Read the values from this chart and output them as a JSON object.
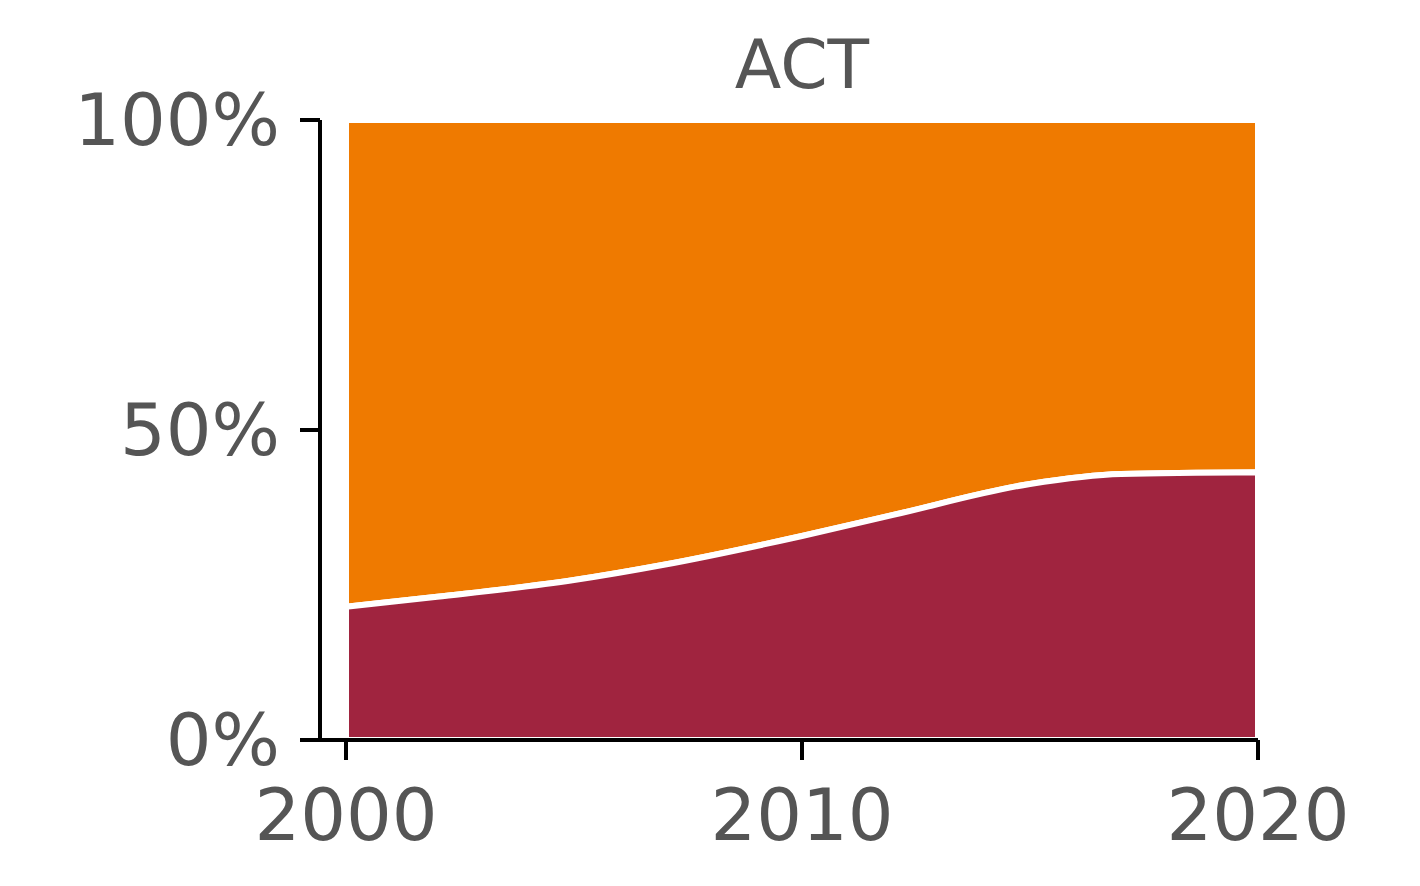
{
  "chart_data": {
    "type": "area",
    "title": "ACT",
    "stacked": true,
    "x": [
      2000,
      2002,
      2005,
      2007,
      2010,
      2012,
      2015,
      2017,
      2020
    ],
    "series": [
      {
        "color": "#a0243f",
        "values": [
          21.5,
          23.1,
          25.8,
          28.3,
          32.9,
          36.3,
          41.3,
          42.9,
          43.2
        ]
      },
      {
        "color": "#ef7a00",
        "values": [
          78.5,
          76.9,
          74.2,
          71.7,
          67.1,
          63.7,
          58.7,
          57.1,
          56.8
        ]
      }
    ],
    "xlim": [
      2000,
      2020
    ],
    "xticks": [
      2000,
      2010,
      2020
    ],
    "ylim": [
      0,
      100
    ],
    "yticks": [
      {
        "value": 0,
        "label": "0%"
      },
      {
        "value": 50,
        "label": "50%"
      },
      {
        "value": 100,
        "label": "100%"
      }
    ],
    "tick_labels": true
  }
}
